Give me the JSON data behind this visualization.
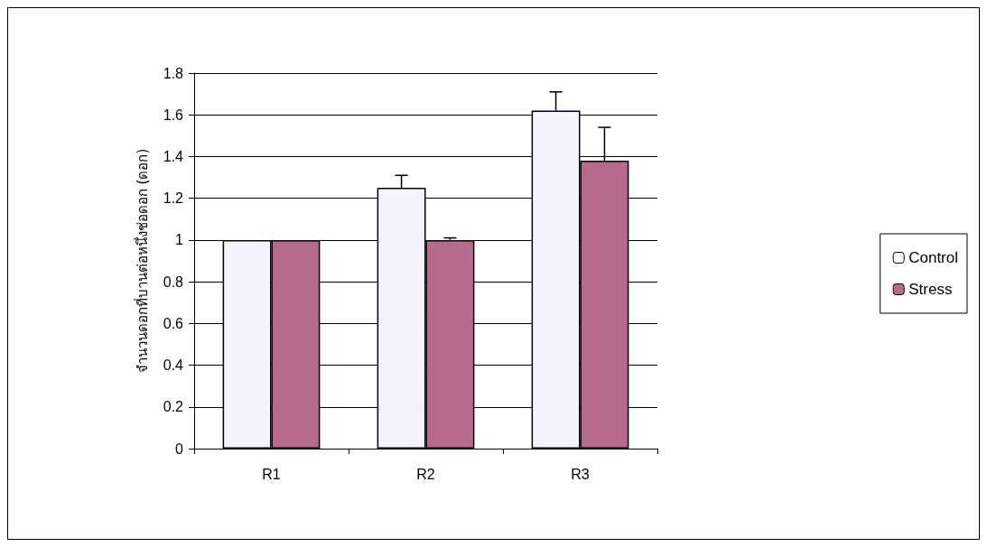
{
  "chart_data": {
    "type": "bar",
    "ylabel": "จำนวนดอกที่บานต่อหนึ่งช่อดอก (ดอก)",
    "categories": [
      "R1",
      "R2",
      "R3"
    ],
    "series": [
      {
        "name": "Control",
        "color": "#f4f4ff",
        "values": [
          1,
          1.25,
          1.62
        ],
        "errors": [
          null,
          [
            1.25,
            1.31
          ],
          [
            1.62,
            1.71
          ]
        ]
      },
      {
        "name": "Stress",
        "color": "#b86a8e",
        "values": [
          1,
          1,
          1.38
        ],
        "errors": [
          null,
          [
            1,
            1.01
          ],
          [
            1.38,
            1.54
          ]
        ]
      }
    ],
    "ylim": [
      0,
      1.8
    ],
    "yticks": [
      0,
      0.2,
      0.4,
      0.6,
      0.8,
      1,
      1.2,
      1.4,
      1.6,
      1.8
    ],
    "grid": "y",
    "legend": "right"
  }
}
